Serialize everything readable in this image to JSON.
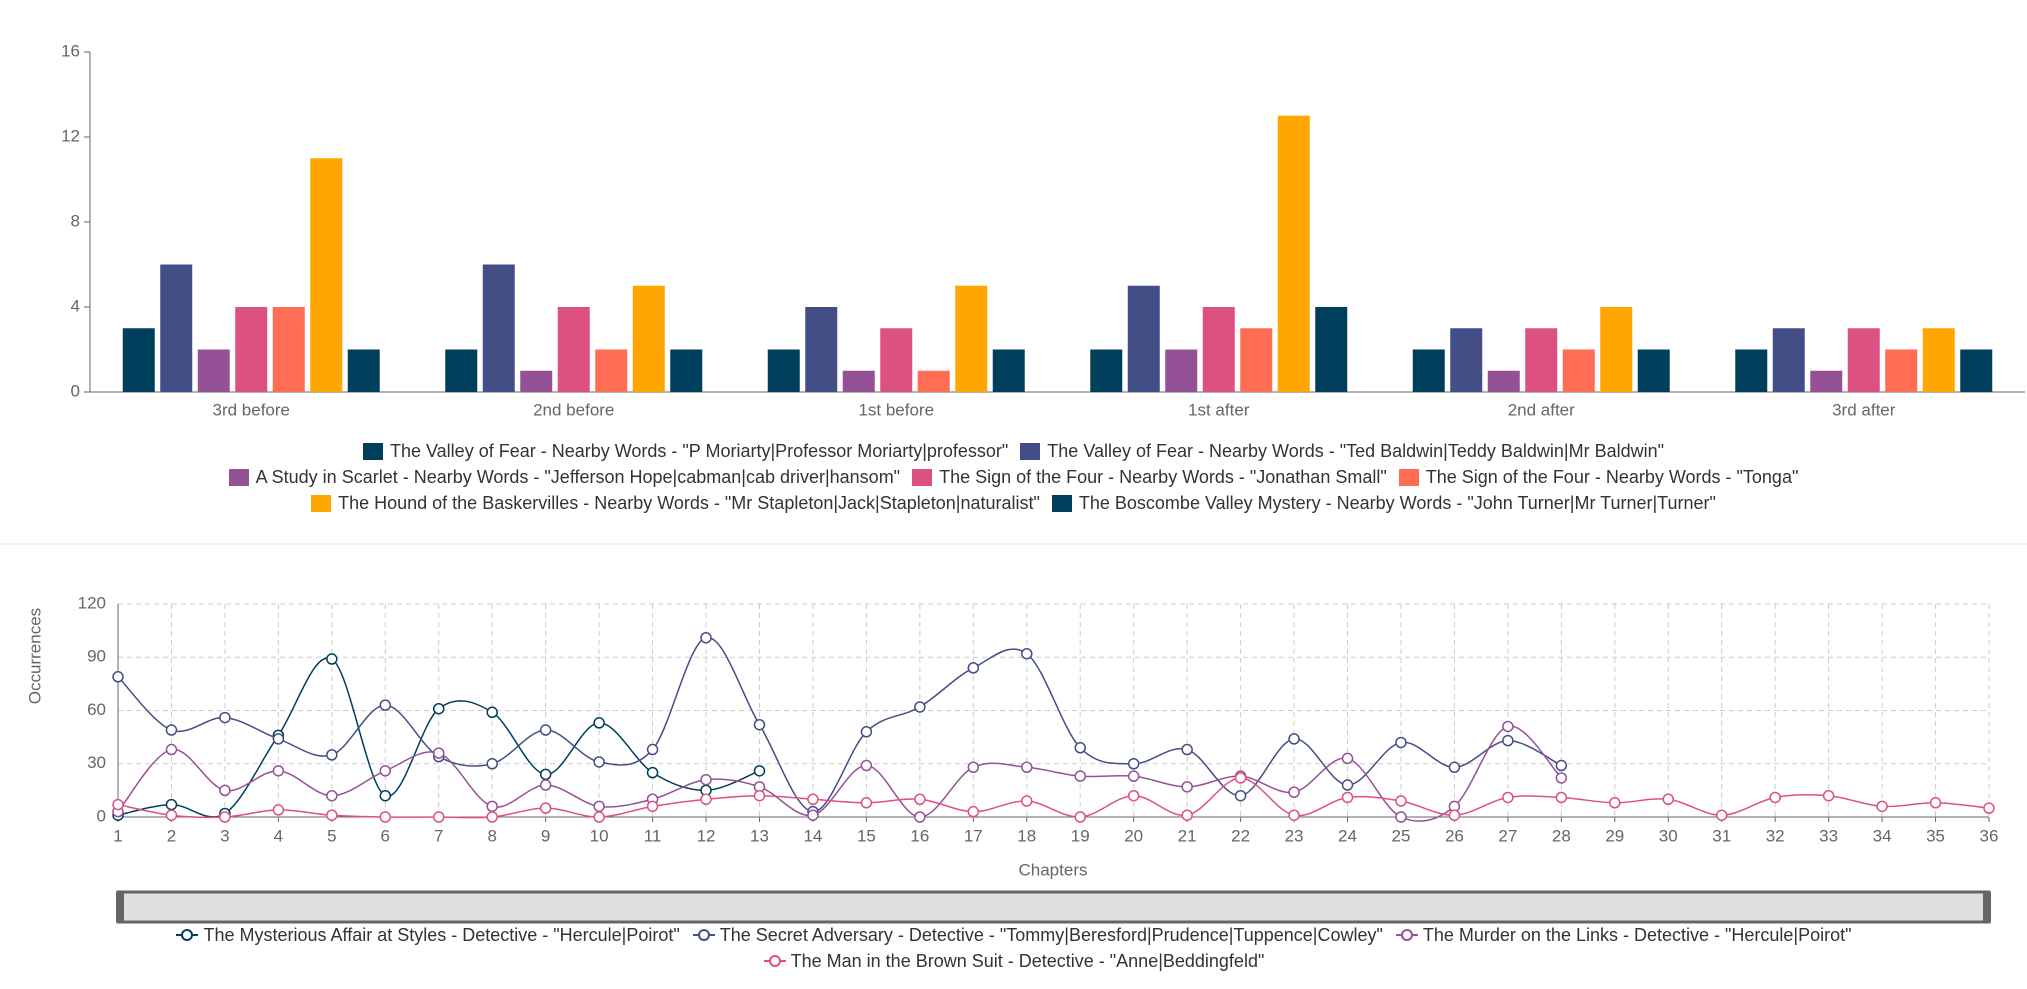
{
  "chart_data": [
    {
      "type": "bar",
      "categories": [
        "3rd before",
        "2nd before",
        "1st before",
        "1st after",
        "2nd after",
        "3rd after"
      ],
      "ylim": [
        0,
        16
      ],
      "yticks": [
        0,
        4,
        8,
        12,
        16
      ],
      "series": [
        {
          "name": "The Valley of Fear - Nearby Words - \"P Moriarty|Professor Moriarty|professor\"",
          "color": "#003f5c",
          "values": [
            3,
            2,
            2,
            2,
            2,
            2
          ]
        },
        {
          "name": "The Valley of Fear - Nearby Words - \"Ted Baldwin|Teddy Baldwin|Mr Baldwin\"",
          "color": "#444e86",
          "values": [
            6,
            6,
            4,
            5,
            3,
            3
          ]
        },
        {
          "name": "A Study in Scarlet - Nearby Words - \"Jefferson Hope|cabman|cab driver|hansom\"",
          "color": "#955196",
          "values": [
            2,
            1,
            1,
            2,
            1,
            1
          ]
        },
        {
          "name": "The Sign of the Four - Nearby Words - \"Jonathan Small\"",
          "color": "#dd5182",
          "values": [
            4,
            4,
            3,
            4,
            3,
            3
          ]
        },
        {
          "name": "The Sign of the Four - Nearby Words - \"Tonga\"",
          "color": "#ff6e54",
          "values": [
            4,
            2,
            1,
            3,
            2,
            2
          ]
        },
        {
          "name": "The Hound of the Baskervilles - Nearby Words - \"Mr Stapleton|Jack|Stapleton|naturalist\"",
          "color": "#ffa600",
          "values": [
            11,
            5,
            5,
            13,
            4,
            3
          ]
        },
        {
          "name": "The Boscombe Valley Mystery - Nearby Words - \"John Turner|Mr Turner|Turner\"",
          "color": "#003f5c",
          "values": [
            2,
            2,
            2,
            4,
            2,
            2
          ]
        }
      ]
    },
    {
      "type": "line",
      "x_label": "Chapters",
      "y_label": "Occurrences",
      "grid": true,
      "x": [
        1,
        2,
        3,
        4,
        5,
        6,
        7,
        8,
        9,
        10,
        11,
        12,
        13,
        14,
        15,
        16,
        17,
        18,
        19,
        20,
        21,
        22,
        23,
        24,
        25,
        26,
        27,
        28,
        29,
        30,
        31,
        32,
        33,
        34,
        35,
        36
      ],
      "xlim": [
        1,
        36
      ],
      "xticks": [
        1,
        2,
        3,
        4,
        5,
        6,
        7,
        8,
        9,
        10,
        11,
        12,
        13,
        14,
        15,
        16,
        17,
        18,
        19,
        20,
        21,
        22,
        23,
        24,
        25,
        26,
        27,
        28,
        29,
        30,
        31,
        32,
        33,
        34,
        35,
        36
      ],
      "ylim": [
        0,
        120
      ],
      "yticks": [
        0,
        30,
        60,
        90,
        120
      ],
      "series": [
        {
          "name": "The Mysterious Affair at Styles - Detective - \"Hercule|Poirot\"",
          "color": "#003f5c",
          "values": [
            1,
            7,
            2,
            46,
            89,
            12,
            61,
            59,
            24,
            53,
            25,
            15,
            26,
            null,
            null,
            null,
            null,
            null,
            null,
            null,
            null,
            null,
            null,
            null,
            null,
            null,
            null,
            null,
            null,
            null,
            null,
            null,
            null,
            null,
            null,
            null
          ]
        },
        {
          "name": "The Secret Adversary - Detective - \"Tommy|Beresford|Prudence|Tuppence|Cowley\"",
          "color": "#444e86",
          "values": [
            79,
            49,
            56,
            44,
            35,
            63,
            34,
            30,
            49,
            31,
            38,
            101,
            52,
            3,
            48,
            62,
            84,
            92,
            39,
            30,
            38,
            12,
            44,
            18,
            42,
            28,
            43,
            29,
            null,
            null,
            null,
            null,
            null,
            null,
            null,
            null
          ]
        },
        {
          "name": "The Murder on the Links - Detective - \"Hercule|Poirot\"",
          "color": "#955196",
          "values": [
            3,
            38,
            15,
            26,
            12,
            26,
            36,
            6,
            18,
            6,
            10,
            21,
            17,
            1,
            29,
            0,
            28,
            28,
            23,
            23,
            17,
            23,
            14,
            33,
            0,
            6,
            51,
            22,
            null,
            null,
            null,
            null,
            null,
            null,
            null,
            null
          ]
        },
        {
          "name": "The Man in the Brown Suit - Detective - \"Anne|Beddingfeld\"",
          "color": "#dd5182",
          "values": [
            7,
            1,
            0,
            4,
            1,
            0,
            0,
            0,
            5,
            0,
            6,
            10,
            12,
            10,
            8,
            10,
            3,
            9,
            0,
            12,
            1,
            22,
            1,
            11,
            9,
            1,
            11,
            11,
            8,
            10,
            1,
            11,
            12,
            6,
            8,
            5
          ]
        }
      ]
    }
  ]
}
